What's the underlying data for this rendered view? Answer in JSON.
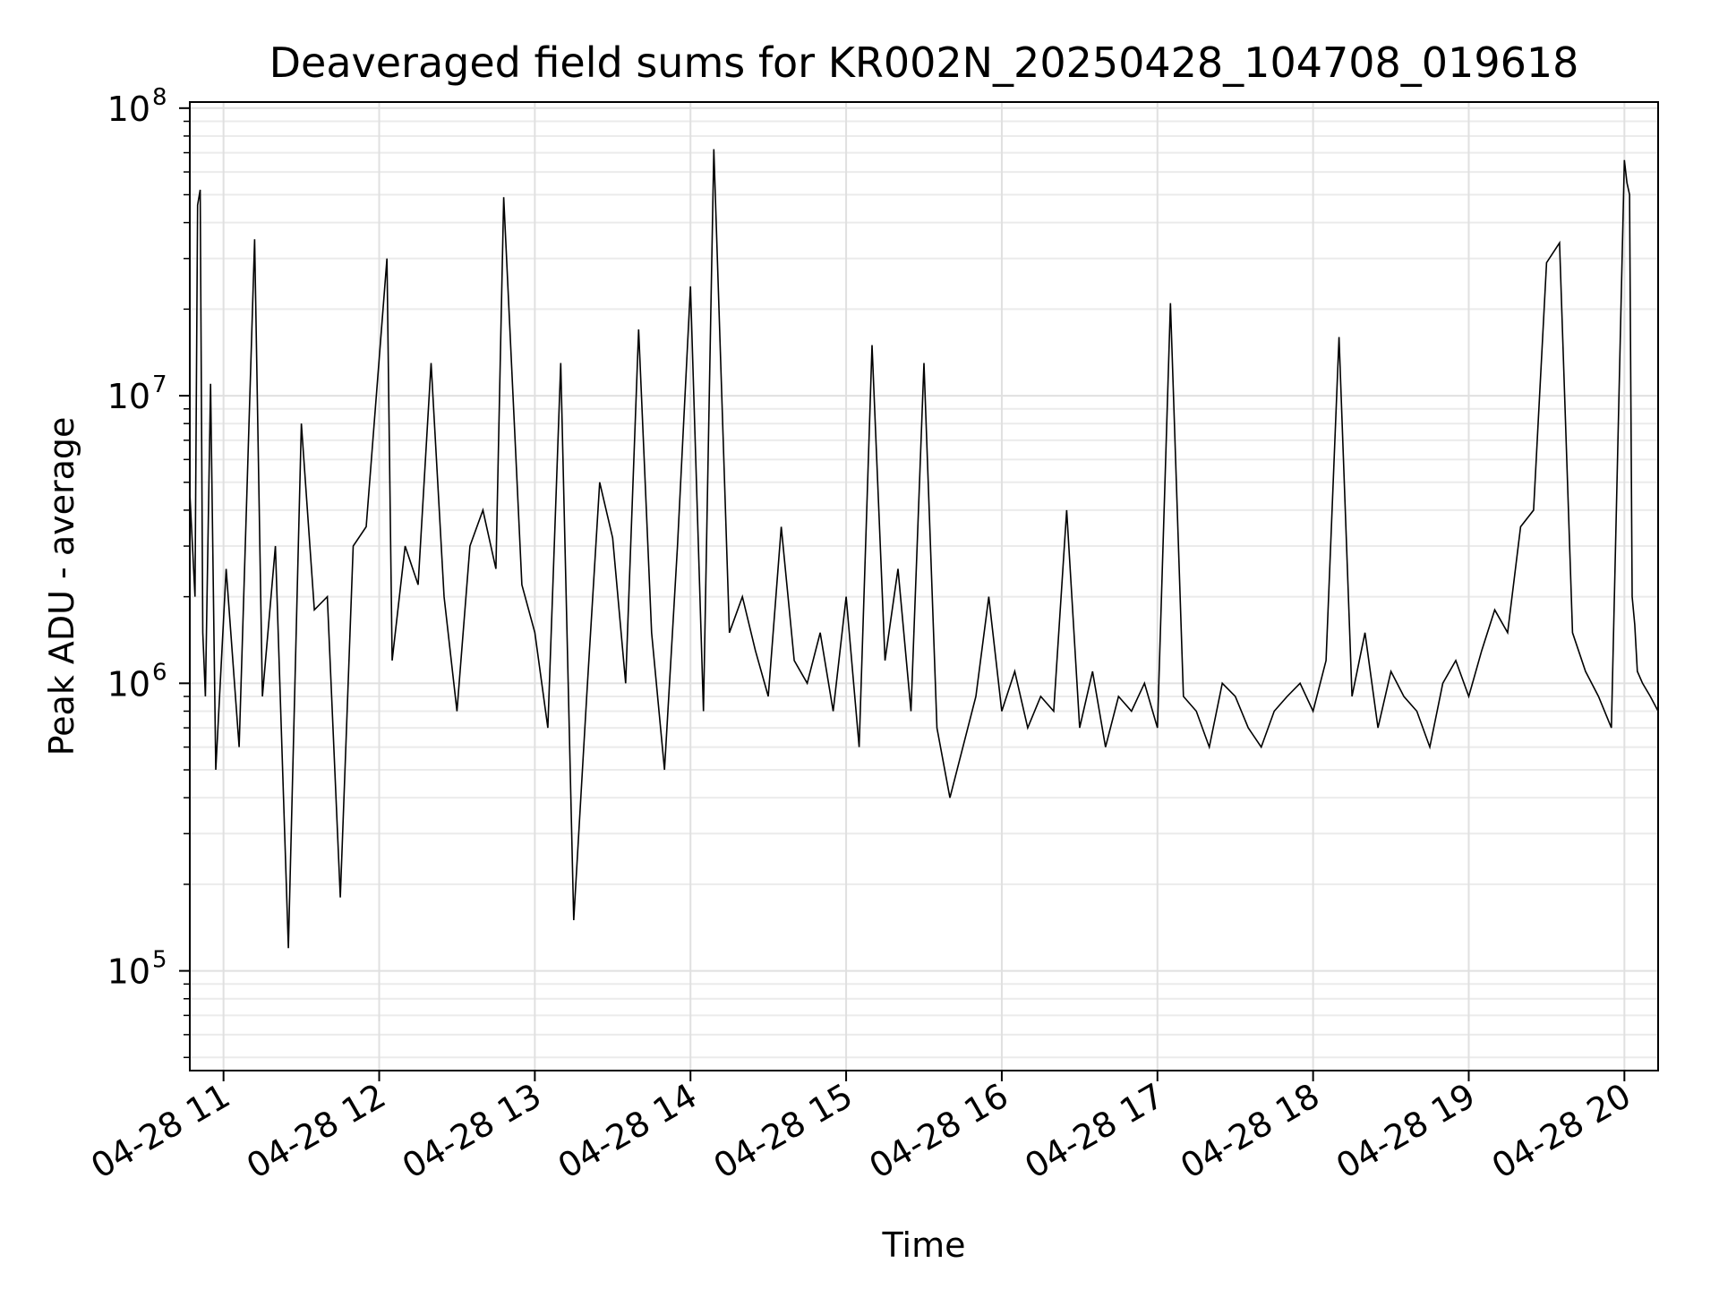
{
  "chart_data": {
    "type": "line",
    "title": "Deaveraged field sums for KR002N_20250428_104708_019618",
    "xlabel": "Time",
    "ylabel": "Peak ADU - average",
    "yscale": "log",
    "ylim": [
      45000,
      105000000
    ],
    "xlim": [
      "2025-04-28T10:47:00",
      "2025-04-28T20:13:00"
    ],
    "grid": true,
    "x_ticks": [
      {
        "label": "04-28 11",
        "t": "2025-04-28T11:00"
      },
      {
        "label": "04-28 12",
        "t": "2025-04-28T12:00"
      },
      {
        "label": "04-28 13",
        "t": "2025-04-28T13:00"
      },
      {
        "label": "04-28 14",
        "t": "2025-04-28T14:00"
      },
      {
        "label": "04-28 15",
        "t": "2025-04-28T15:00"
      },
      {
        "label": "04-28 16",
        "t": "2025-04-28T16:00"
      },
      {
        "label": "04-28 17",
        "t": "2025-04-28T17:00"
      },
      {
        "label": "04-28 18",
        "t": "2025-04-28T18:00"
      },
      {
        "label": "04-28 19",
        "t": "2025-04-28T19:00"
      },
      {
        "label": "04-28 20",
        "t": "2025-04-28T20:00"
      }
    ],
    "y_ticks": [
      {
        "base": "10",
        "exp": "5",
        "value": 100000
      },
      {
        "base": "10",
        "exp": "6",
        "value": 1000000
      },
      {
        "base": "10",
        "exp": "7",
        "value": 10000000
      },
      {
        "base": "10",
        "exp": "8",
        "value": 100000000
      }
    ],
    "series": [
      {
        "color": "#000000",
        "x": [
          "2025-04-28T10:47",
          "2025-04-28T10:49",
          "2025-04-28T10:50",
          "2025-04-28T10:51",
          "2025-04-28T10:52",
          "2025-04-28T10:53",
          "2025-04-28T10:55",
          "2025-04-28T10:57",
          "2025-04-28T11:01",
          "2025-04-28T11:06",
          "2025-04-28T11:12",
          "2025-04-28T11:15",
          "2025-04-28T11:20",
          "2025-04-28T11:25",
          "2025-04-28T11:30",
          "2025-04-28T11:35",
          "2025-04-28T11:40",
          "2025-04-28T11:45",
          "2025-04-28T11:50",
          "2025-04-28T11:55",
          "2025-04-28T12:03",
          "2025-04-28T12:05",
          "2025-04-28T12:10",
          "2025-04-28T12:15",
          "2025-04-28T12:20",
          "2025-04-28T12:25",
          "2025-04-28T12:30",
          "2025-04-28T12:35",
          "2025-04-28T12:40",
          "2025-04-28T12:45",
          "2025-04-28T12:48",
          "2025-04-28T12:55",
          "2025-04-28T13:00",
          "2025-04-28T13:05",
          "2025-04-28T13:10",
          "2025-04-28T13:15",
          "2025-04-28T13:20",
          "2025-04-28T13:25",
          "2025-04-28T13:30",
          "2025-04-28T13:35",
          "2025-04-28T13:40",
          "2025-04-28T13:45",
          "2025-04-28T13:50",
          "2025-04-28T13:55",
          "2025-04-28T14:00",
          "2025-04-28T14:05",
          "2025-04-28T14:09",
          "2025-04-28T14:15",
          "2025-04-28T14:20",
          "2025-04-28T14:25",
          "2025-04-28T14:30",
          "2025-04-28T14:35",
          "2025-04-28T14:40",
          "2025-04-28T14:45",
          "2025-04-28T14:50",
          "2025-04-28T14:55",
          "2025-04-28T15:00",
          "2025-04-28T15:05",
          "2025-04-28T15:10",
          "2025-04-28T15:15",
          "2025-04-28T15:20",
          "2025-04-28T15:25",
          "2025-04-28T15:30",
          "2025-04-28T15:35",
          "2025-04-28T15:40",
          "2025-04-28T15:45",
          "2025-04-28T15:50",
          "2025-04-28T15:55",
          "2025-04-28T16:00",
          "2025-04-28T16:05",
          "2025-04-28T16:10",
          "2025-04-28T16:15",
          "2025-04-28T16:20",
          "2025-04-28T16:25",
          "2025-04-28T16:30",
          "2025-04-28T16:35",
          "2025-04-28T16:40",
          "2025-04-28T16:45",
          "2025-04-28T16:50",
          "2025-04-28T16:55",
          "2025-04-28T17:00",
          "2025-04-28T17:05",
          "2025-04-28T17:10",
          "2025-04-28T17:15",
          "2025-04-28T17:20",
          "2025-04-28T17:25",
          "2025-04-28T17:30",
          "2025-04-28T17:35",
          "2025-04-28T17:40",
          "2025-04-28T17:45",
          "2025-04-28T17:50",
          "2025-04-28T17:55",
          "2025-04-28T18:00",
          "2025-04-28T18:05",
          "2025-04-28T18:10",
          "2025-04-28T18:15",
          "2025-04-28T18:20",
          "2025-04-28T18:25",
          "2025-04-28T18:30",
          "2025-04-28T18:35",
          "2025-04-28T18:40",
          "2025-04-28T18:45",
          "2025-04-28T18:50",
          "2025-04-28T18:55",
          "2025-04-28T19:00",
          "2025-04-28T19:05",
          "2025-04-28T19:10",
          "2025-04-28T19:15",
          "2025-04-28T19:20",
          "2025-04-28T19:25",
          "2025-04-28T19:30",
          "2025-04-28T19:35",
          "2025-04-28T19:40",
          "2025-04-28T19:45",
          "2025-04-28T19:50",
          "2025-04-28T19:55",
          "2025-04-28T20:00",
          "2025-04-28T20:01",
          "2025-04-28T20:02",
          "2025-04-28T20:03",
          "2025-04-28T20:04",
          "2025-04-28T20:05",
          "2025-04-28T20:07",
          "2025-04-28T20:10",
          "2025-04-28T20:13"
        ],
        "y": [
          4600000,
          2000000,
          46000000,
          52000000,
          1500000,
          900000,
          11000000,
          500000,
          2500000,
          600000,
          35000000,
          900000,
          3000000,
          120000,
          8000000,
          1800000,
          2000000,
          180000,
          3000000,
          3500000,
          30000000,
          1200000,
          3000000,
          2200000,
          13000000,
          2000000,
          800000,
          3000000,
          4000000,
          2500000,
          49000000,
          2200000,
          1500000,
          700000,
          13000000,
          150000,
          900000,
          5000000,
          3200000,
          1000000,
          17000000,
          1500000,
          500000,
          3000000,
          24000000,
          800000,
          72000000,
          1500000,
          2000000,
          1300000,
          900000,
          3500000,
          1200000,
          1000000,
          1500000,
          800000,
          2000000,
          600000,
          15000000,
          1200000,
          2500000,
          800000,
          13000000,
          700000,
          400000,
          600000,
          900000,
          2000000,
          800000,
          1100000,
          700000,
          900000,
          800000,
          4000000,
          700000,
          1100000,
          600000,
          900000,
          800000,
          1000000,
          700000,
          21000000,
          900000,
          800000,
          600000,
          1000000,
          900000,
          700000,
          600000,
          800000,
          900000,
          1000000,
          800000,
          1200000,
          16000000,
          900000,
          1500000,
          700000,
          1100000,
          900000,
          800000,
          600000,
          1000000,
          1200000,
          900000,
          1300000,
          1800000,
          1500000,
          3500000,
          4000000,
          29000000,
          34000000,
          1500000,
          1100000,
          900000,
          700000,
          66000000,
          55000000,
          50000000,
          2000000,
          1600000,
          1100000,
          1000000,
          900000,
          800000
        ]
      }
    ]
  }
}
